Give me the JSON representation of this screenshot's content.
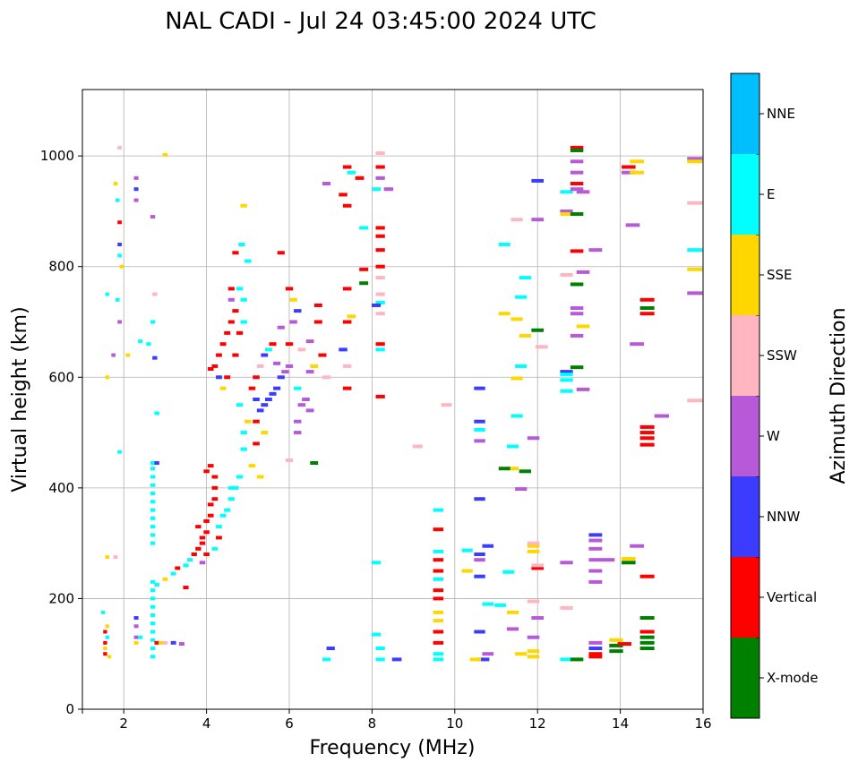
{
  "chart_data": {
    "type": "scatter",
    "title": "NAL CADI - Jul 24 03:45:00 2024 UTC",
    "xlabel": "Frequency (MHz)",
    "ylabel": "Virtual height (km)",
    "xlim": [
      1,
      16
    ],
    "ylim": [
      0,
      1120
    ],
    "xticks": [
      2,
      4,
      6,
      8,
      10,
      12,
      14,
      16
    ],
    "yticks": [
      0,
      200,
      400,
      600,
      800,
      1000
    ],
    "grid": true,
    "colorbar": {
      "label": "Azimuth Direction",
      "categories": [
        "X-mode",
        "Vertical",
        "NNW",
        "W",
        "SSW",
        "SSE",
        "E",
        "NNE"
      ],
      "colors": [
        "#008000",
        "#ff0000",
        "#3c3cff",
        "#b65ad8",
        "#ffb6c1",
        "#ffd700",
        "#00ffff",
        "#00bfff"
      ]
    },
    "points_format": [
      "frequency_mhz",
      "virtual_height_km",
      "category_index"
    ],
    "points": [
      [
        1.55,
        100,
        1
      ],
      [
        1.55,
        120,
        1
      ],
      [
        1.55,
        140,
        1
      ],
      [
        1.6,
        130,
        6
      ],
      [
        1.6,
        150,
        5
      ],
      [
        1.55,
        110,
        5
      ],
      [
        1.65,
        95,
        5
      ],
      [
        1.5,
        175,
        6
      ],
      [
        2.3,
        130,
        3
      ],
      [
        2.3,
        150,
        3
      ],
      [
        2.3,
        165,
        2
      ],
      [
        2.3,
        120,
        5
      ],
      [
        2.4,
        130,
        6
      ],
      [
        2.7,
        95,
        6
      ],
      [
        2.7,
        110,
        6
      ],
      [
        2.7,
        125,
        6
      ],
      [
        2.7,
        140,
        6
      ],
      [
        2.7,
        155,
        6
      ],
      [
        2.7,
        170,
        6
      ],
      [
        2.7,
        185,
        6
      ],
      [
        2.7,
        200,
        6
      ],
      [
        2.7,
        215,
        6
      ],
      [
        2.7,
        230,
        6
      ],
      [
        2.7,
        300,
        6
      ],
      [
        2.7,
        315,
        6
      ],
      [
        2.7,
        330,
        6
      ],
      [
        2.7,
        345,
        6
      ],
      [
        2.7,
        360,
        6
      ],
      [
        2.7,
        375,
        6
      ],
      [
        2.7,
        390,
        6
      ],
      [
        2.7,
        405,
        6
      ],
      [
        2.7,
        420,
        6
      ],
      [
        2.7,
        435,
        6
      ],
      [
        2.7,
        445,
        6
      ],
      [
        2.8,
        120,
        1
      ],
      [
        2.9,
        120,
        5
      ],
      [
        3.0,
        120,
        4
      ],
      [
        3.2,
        120,
        2
      ],
      [
        3.4,
        118,
        3
      ],
      [
        1.85,
        920,
        6
      ],
      [
        1.9,
        880,
        1
      ],
      [
        1.9,
        840,
        2
      ],
      [
        1.9,
        820,
        6
      ],
      [
        1.95,
        800,
        5
      ],
      [
        1.85,
        740,
        6
      ],
      [
        1.9,
        700,
        3
      ],
      [
        1.6,
        750,
        6
      ],
      [
        1.75,
        640,
        3
      ],
      [
        2.3,
        960,
        3
      ],
      [
        2.3,
        940,
        2
      ],
      [
        2.3,
        920,
        3
      ],
      [
        1.8,
        950,
        5
      ],
      [
        1.9,
        1015,
        4
      ],
      [
        3.0,
        1002,
        5
      ],
      [
        2.7,
        890,
        3
      ],
      [
        2.4,
        665,
        6
      ],
      [
        2.6,
        660,
        6
      ],
      [
        2.7,
        700,
        6
      ],
      [
        2.75,
        635,
        2
      ],
      [
        2.75,
        750,
        4
      ],
      [
        2.1,
        640,
        5
      ],
      [
        1.6,
        600,
        5
      ],
      [
        1.9,
        465,
        6
      ],
      [
        1.6,
        275,
        5
      ],
      [
        1.8,
        275,
        4
      ],
      [
        2.8,
        535,
        6
      ],
      [
        2.8,
        445,
        2
      ],
      [
        2.8,
        225,
        6
      ],
      [
        3.0,
        235,
        5
      ],
      [
        3.2,
        245,
        6
      ],
      [
        3.3,
        255,
        1
      ],
      [
        3.5,
        260,
        6
      ],
      [
        3.6,
        270,
        6
      ],
      [
        3.7,
        280,
        1
      ],
      [
        3.8,
        290,
        1
      ],
      [
        3.9,
        300,
        1
      ],
      [
        3.9,
        310,
        1
      ],
      [
        4.0,
        320,
        1
      ],
      [
        4.0,
        340,
        1
      ],
      [
        4.1,
        350,
        1
      ],
      [
        4.1,
        370,
        1
      ],
      [
        4.2,
        380,
        1
      ],
      [
        4.2,
        400,
        1
      ],
      [
        4.3,
        310,
        1
      ],
      [
        4.3,
        330,
        6
      ],
      [
        4.4,
        350,
        6
      ],
      [
        4.5,
        360,
        6
      ],
      [
        4.6,
        380,
        6
      ],
      [
        4.7,
        400,
        6
      ],
      [
        4.8,
        420,
        6
      ],
      [
        4.0,
        430,
        1
      ],
      [
        4.1,
        440,
        1
      ],
      [
        4.0,
        280,
        1
      ],
      [
        4.2,
        290,
        6
      ],
      [
        3.9,
        265,
        3
      ],
      [
        3.8,
        330,
        1
      ],
      [
        4.2,
        420,
        1
      ],
      [
        4.6,
        400,
        6
      ],
      [
        3.5,
        220,
        1
      ],
      [
        4.2,
        620,
        1
      ],
      [
        4.3,
        640,
        1
      ],
      [
        4.4,
        660,
        1
      ],
      [
        4.5,
        680,
        1
      ],
      [
        4.6,
        700,
        1
      ],
      [
        4.7,
        720,
        1
      ],
      [
        4.8,
        760,
        6
      ],
      [
        4.6,
        740,
        3
      ],
      [
        4.5,
        600,
        1
      ],
      [
        4.4,
        580,
        5
      ],
      [
        4.1,
        615,
        1
      ],
      [
        4.3,
        600,
        2
      ],
      [
        4.7,
        640,
        1
      ],
      [
        4.9,
        700,
        6
      ],
      [
        4.9,
        740,
        6
      ],
      [
        4.8,
        680,
        1
      ],
      [
        4.6,
        760,
        1
      ],
      [
        4.7,
        825,
        1
      ],
      [
        4.85,
        840,
        6
      ],
      [
        4.9,
        910,
        5
      ],
      [
        5.0,
        810,
        6
      ],
      [
        4.8,
        550,
        6
      ],
      [
        4.9,
        500,
        6
      ],
      [
        4.9,
        470,
        6
      ],
      [
        5.0,
        520,
        5
      ],
      [
        5.1,
        440,
        5
      ],
      [
        5.2,
        480,
        1
      ],
      [
        5.2,
        560,
        2
      ],
      [
        5.3,
        540,
        2
      ],
      [
        5.4,
        550,
        2
      ],
      [
        5.5,
        560,
        2
      ],
      [
        5.6,
        570,
        2
      ],
      [
        5.7,
        580,
        2
      ],
      [
        5.8,
        600,
        2
      ],
      [
        5.9,
        610,
        3
      ],
      [
        6.0,
        620,
        3
      ],
      [
        6.0,
        660,
        1
      ],
      [
        6.1,
        700,
        3
      ],
      [
        6.2,
        720,
        2
      ],
      [
        6.3,
        650,
        4
      ],
      [
        6.5,
        610,
        3
      ],
      [
        6.6,
        620,
        5
      ],
      [
        6.4,
        560,
        3
      ],
      [
        6.5,
        540,
        3
      ],
      [
        6.2,
        520,
        3
      ],
      [
        6.2,
        500,
        3
      ],
      [
        6.7,
        730,
        1
      ],
      [
        6.7,
        700,
        1
      ],
      [
        6.9,
        600,
        4
      ],
      [
        6.8,
        640,
        1
      ],
      [
        6.9,
        950,
        3
      ],
      [
        5.2,
        600,
        1
      ],
      [
        5.3,
        620,
        4
      ],
      [
        5.4,
        640,
        2
      ],
      [
        5.5,
        650,
        6
      ],
      [
        5.6,
        660,
        1
      ],
      [
        5.7,
        625,
        3
      ],
      [
        5.8,
        690,
        3
      ],
      [
        5.1,
        580,
        1
      ],
      [
        5.2,
        520,
        1
      ],
      [
        5.4,
        500,
        5
      ],
      [
        5.3,
        420,
        5
      ],
      [
        5.8,
        825,
        1
      ],
      [
        6.0,
        760,
        1
      ],
      [
        6.1,
        740,
        5
      ],
      [
        6.0,
        450,
        4
      ],
      [
        6.6,
        445,
        0
      ],
      [
        6.5,
        665,
        3
      ],
      [
        6.2,
        580,
        6
      ],
      [
        6.3,
        550,
        3
      ],
      [
        7.4,
        980,
        1
      ],
      [
        7.5,
        970,
        6
      ],
      [
        7.3,
        930,
        1
      ],
      [
        7.4,
        910,
        1
      ],
      [
        7.7,
        960,
        1
      ],
      [
        7.8,
        870,
        6
      ],
      [
        7.8,
        795,
        1
      ],
      [
        7.4,
        760,
        1
      ],
      [
        7.4,
        700,
        1
      ],
      [
        7.4,
        620,
        4
      ],
      [
        7.4,
        580,
        1
      ],
      [
        7.5,
        710,
        5
      ],
      [
        7.3,
        650,
        2
      ],
      [
        7.8,
        770,
        0
      ],
      [
        8.2,
        1005,
        4
      ],
      [
        8.2,
        980,
        1
      ],
      [
        8.2,
        960,
        3
      ],
      [
        8.1,
        940,
        6
      ],
      [
        8.4,
        940,
        3
      ],
      [
        8.2,
        870,
        1
      ],
      [
        8.2,
        855,
        1
      ],
      [
        8.2,
        830,
        1
      ],
      [
        8.2,
        800,
        1
      ],
      [
        8.2,
        780,
        4
      ],
      [
        8.2,
        750,
        4
      ],
      [
        8.2,
        735,
        6
      ],
      [
        8.2,
        715,
        4
      ],
      [
        8.2,
        660,
        1
      ],
      [
        8.2,
        650,
        6
      ],
      [
        8.2,
        565,
        1
      ],
      [
        8.1,
        730,
        2
      ],
      [
        7.0,
        110,
        2
      ],
      [
        6.9,
        90,
        6
      ],
      [
        8.1,
        265,
        6
      ],
      [
        8.1,
        135,
        6
      ],
      [
        8.2,
        110,
        6
      ],
      [
        8.2,
        90,
        6
      ],
      [
        8.6,
        90,
        2
      ],
      [
        9.1,
        475,
        4
      ],
      [
        9.8,
        550,
        4
      ],
      [
        9.6,
        360,
        6
      ],
      [
        9.6,
        325,
        1
      ],
      [
        9.6,
        285,
        6
      ],
      [
        9.6,
        270,
        1
      ],
      [
        9.6,
        250,
        1
      ],
      [
        9.6,
        235,
        6
      ],
      [
        9.6,
        215,
        1
      ],
      [
        9.6,
        200,
        1
      ],
      [
        9.6,
        175,
        5
      ],
      [
        9.6,
        160,
        5
      ],
      [
        9.6,
        140,
        1
      ],
      [
        9.6,
        120,
        1
      ],
      [
        9.6,
        100,
        6
      ],
      [
        9.6,
        90,
        6
      ],
      [
        10.6,
        580,
        2
      ],
      [
        10.6,
        520,
        2
      ],
      [
        10.6,
        505,
        6
      ],
      [
        10.6,
        485,
        3
      ],
      [
        10.6,
        380,
        2
      ],
      [
        10.6,
        280,
        2
      ],
      [
        10.8,
        295,
        2
      ],
      [
        10.6,
        270,
        3
      ],
      [
        10.6,
        240,
        2
      ],
      [
        10.3,
        287,
        6
      ],
      [
        10.3,
        250,
        5
      ],
      [
        10.8,
        190,
        6
      ],
      [
        10.6,
        140,
        2
      ],
      [
        10.8,
        100,
        3
      ],
      [
        10.7,
        90,
        2
      ],
      [
        10.5,
        90,
        5
      ],
      [
        11.2,
        840,
        6
      ],
      [
        11.2,
        715,
        5
      ],
      [
        11.5,
        705,
        5
      ],
      [
        11.7,
        780,
        6
      ],
      [
        11.6,
        745,
        6
      ],
      [
        11.5,
        885,
        4
      ],
      [
        11.5,
        530,
        6
      ],
      [
        11.5,
        598,
        5
      ],
      [
        11.6,
        620,
        6
      ],
      [
        11.4,
        475,
        6
      ],
      [
        11.4,
        435,
        5
      ],
      [
        11.6,
        398,
        3
      ],
      [
        11.2,
        435,
        0
      ],
      [
        11.7,
        430,
        0
      ],
      [
        11.7,
        675,
        5
      ],
      [
        11.9,
        490,
        3
      ],
      [
        11.9,
        295,
        5
      ],
      [
        11.9,
        285,
        5
      ],
      [
        11.9,
        300,
        4
      ],
      [
        12.0,
        255,
        1
      ],
      [
        12.0,
        260,
        4
      ],
      [
        11.3,
        248,
        6
      ],
      [
        11.1,
        188,
        6
      ],
      [
        11.4,
        175,
        5
      ],
      [
        11.4,
        145,
        3
      ],
      [
        11.9,
        195,
        4
      ],
      [
        12.0,
        165,
        3
      ],
      [
        11.9,
        130,
        3
      ],
      [
        11.6,
        100,
        5
      ],
      [
        11.9,
        95,
        5
      ],
      [
        11.9,
        105,
        5
      ],
      [
        12.0,
        955,
        2
      ],
      [
        12.0,
        885,
        3
      ],
      [
        12.0,
        685,
        0
      ],
      [
        12.1,
        655,
        4
      ],
      [
        12.7,
        935,
        6
      ],
      [
        12.7,
        900,
        3
      ],
      [
        12.7,
        895,
        5
      ],
      [
        12.7,
        785,
        4
      ],
      [
        12.7,
        610,
        2
      ],
      [
        12.7,
        605,
        6
      ],
      [
        12.7,
        595,
        6
      ],
      [
        12.7,
        575,
        6
      ],
      [
        12.7,
        265,
        3
      ],
      [
        12.7,
        183,
        4
      ],
      [
        12.7,
        90,
        6
      ],
      [
        12.95,
        1015,
        1
      ],
      [
        12.95,
        1010,
        0
      ],
      [
        12.95,
        990,
        3
      ],
      [
        12.95,
        970,
        3
      ],
      [
        12.95,
        950,
        1
      ],
      [
        12.95,
        940,
        3
      ],
      [
        12.95,
        895,
        0
      ],
      [
        12.95,
        828,
        1
      ],
      [
        12.95,
        768,
        0
      ],
      [
        12.95,
        725,
        3
      ],
      [
        12.95,
        715,
        3
      ],
      [
        12.95,
        675,
        3
      ],
      [
        12.95,
        618,
        0
      ],
      [
        12.95,
        90,
        0
      ],
      [
        13.1,
        935,
        3
      ],
      [
        13.1,
        790,
        3
      ],
      [
        13.1,
        692,
        5
      ],
      [
        13.1,
        578,
        3
      ],
      [
        13.4,
        830,
        3
      ],
      [
        13.4,
        315,
        2
      ],
      [
        13.4,
        305,
        3
      ],
      [
        13.4,
        290,
        3
      ],
      [
        13.4,
        270,
        3
      ],
      [
        13.4,
        250,
        3
      ],
      [
        13.4,
        230,
        3
      ],
      [
        13.4,
        120,
        3
      ],
      [
        13.4,
        110,
        2
      ],
      [
        13.4,
        100,
        1
      ],
      [
        13.4,
        95,
        1
      ],
      [
        13.7,
        270,
        3
      ],
      [
        13.9,
        125,
        5
      ],
      [
        13.9,
        115,
        0
      ],
      [
        13.9,
        105,
        0
      ],
      [
        14.1,
        118,
        1
      ],
      [
        14.2,
        980,
        1
      ],
      [
        14.2,
        970,
        3
      ],
      [
        14.4,
        990,
        5
      ],
      [
        14.4,
        970,
        5
      ],
      [
        14.3,
        875,
        3
      ],
      [
        14.4,
        660,
        3
      ],
      [
        14.2,
        265,
        0
      ],
      [
        14.2,
        272,
        5
      ],
      [
        14.4,
        295,
        3
      ],
      [
        14.65,
        740,
        1
      ],
      [
        14.65,
        725,
        0
      ],
      [
        14.65,
        715,
        1
      ],
      [
        14.65,
        510,
        1
      ],
      [
        14.65,
        500,
        1
      ],
      [
        14.65,
        490,
        1
      ],
      [
        14.65,
        478,
        1
      ],
      [
        14.65,
        240,
        1
      ],
      [
        14.65,
        165,
        0
      ],
      [
        14.65,
        140,
        1
      ],
      [
        14.65,
        130,
        0
      ],
      [
        14.65,
        120,
        0
      ],
      [
        14.65,
        110,
        0
      ],
      [
        15.0,
        530,
        3
      ],
      [
        15.8,
        995,
        3
      ],
      [
        15.8,
        990,
        5
      ],
      [
        15.8,
        915,
        4
      ],
      [
        15.8,
        830,
        6
      ],
      [
        15.8,
        795,
        5
      ],
      [
        15.8,
        752,
        3
      ],
      [
        15.8,
        558,
        4
      ]
    ]
  }
}
